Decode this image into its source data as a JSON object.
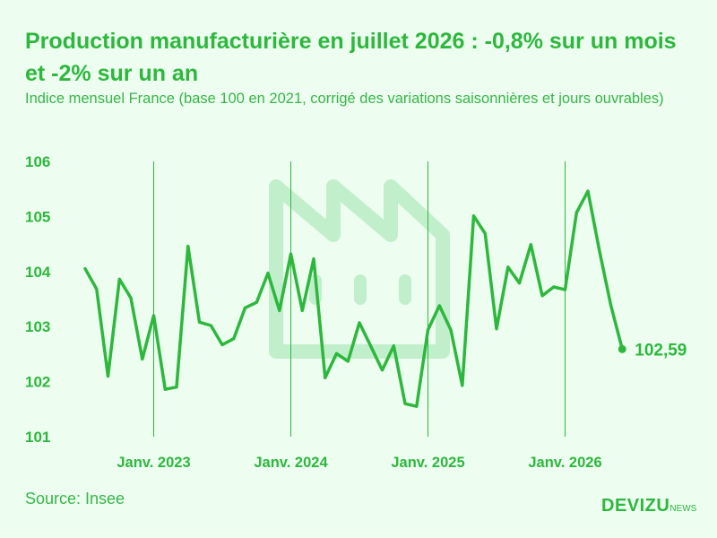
{
  "header": {
    "title": "Production manufacturière en juillet 2026 : -0,8% sur un mois et -2% sur un an",
    "subtitle": "Indice mensuel France (base 100 en 2021, corrigé des variations saisonnières et jours ouvrables)"
  },
  "footer": {
    "source": "Source: Insee",
    "brand_main": "DEVIZU",
    "brand_suffix": "NEWS"
  },
  "colors": {
    "accent": "#2db83d",
    "background": "#edfdf0",
    "watermark": "#c2efcb"
  },
  "watermark_icon": "factory-icon",
  "chart_data": {
    "type": "line",
    "x": [
      "2022-07",
      "2022-08",
      "2022-09",
      "2022-10",
      "2022-11",
      "2022-12",
      "2023-01",
      "2023-02",
      "2023-03",
      "2023-04",
      "2023-05",
      "2023-06",
      "2023-07",
      "2023-08",
      "2023-09",
      "2023-10",
      "2023-11",
      "2023-12",
      "2024-01",
      "2024-02",
      "2024-03",
      "2024-04",
      "2024-05",
      "2024-06",
      "2024-07",
      "2024-08",
      "2024-09",
      "2024-10",
      "2024-11",
      "2024-12",
      "2025-01",
      "2025-02",
      "2025-03",
      "2025-04",
      "2025-05",
      "2025-06",
      "2025-07",
      "2025-08",
      "2025-09",
      "2025-10",
      "2025-11",
      "2025-12",
      "2026-01",
      "2026-02",
      "2026-03",
      "2026-04",
      "2026-05",
      "2026-06",
      "2026-07"
    ],
    "series": [
      {
        "values": [
          104.05,
          103.68,
          102.1,
          103.86,
          103.52,
          102.41,
          103.2,
          101.86,
          101.9,
          104.46,
          103.08,
          103.02,
          102.67,
          102.78,
          103.34,
          103.44,
          103.97,
          103.29,
          104.32,
          103.29,
          104.23,
          102.07,
          102.51,
          102.37,
          103.07,
          102.64,
          102.21,
          102.65,
          101.6,
          101.55,
          102.94,
          103.38,
          102.94,
          101.93,
          105.01,
          104.69,
          102.96,
          104.08,
          103.79,
          104.49,
          103.56,
          103.72,
          103.67,
          105.07,
          105.46,
          104.38,
          103.39,
          102.59,
          null
        ],
        "color": "#2db83d"
      }
    ],
    "last_label": "102,59",
    "ylim": [
      101,
      106
    ],
    "yticks": [
      101,
      102,
      103,
      104,
      105,
      106
    ],
    "ytick_labels": [
      "101",
      "102",
      "103",
      "104",
      "105",
      "106"
    ],
    "xticks": [
      {
        "x": "2023-01",
        "label": "Janv. 2023"
      },
      {
        "x": "2024-01",
        "label": "Janv. 2024"
      },
      {
        "x": "2025-01",
        "label": "Janv. 2025"
      },
      {
        "x": "2026-01",
        "label": "Janv. 2026"
      }
    ],
    "grid": "vertical at year starts",
    "legend": "none",
    "title": "",
    "xlabel": "",
    "ylabel": ""
  }
}
